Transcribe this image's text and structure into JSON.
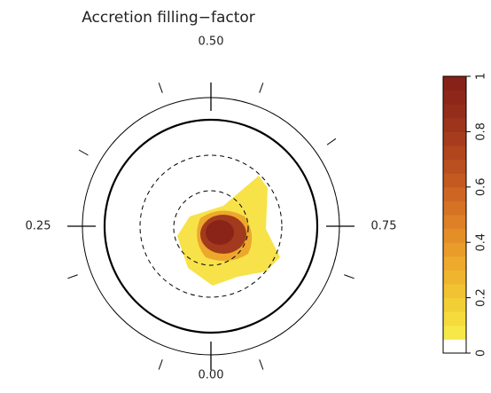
{
  "chart_data": {
    "type": "polar-map",
    "title": "Accretion filling−factor",
    "phase_ticks": [
      {
        "value": 0.5,
        "label": "0.50"
      },
      {
        "value": 0.25,
        "label": "0.25"
      },
      {
        "value": 0.75,
        "label": "0.75"
      },
      {
        "value": 0,
        "label": "0.00"
      }
    ],
    "colorbar": {
      "lim": [
        0,
        1
      ],
      "ticks": [
        0,
        0.2,
        0.4,
        0.6,
        0.8,
        1
      ],
      "colors": [
        "#ffffff",
        "#f7e84a",
        "#f5dc3c",
        "#f3cf36",
        "#f1c232",
        "#efb52e",
        "#edaa2c",
        "#e99c2a",
        "#e48e28",
        "#de8026",
        "#d67224",
        "#cd6622",
        "#c45a20",
        "#ba4f1f",
        "#b0451e",
        "#a63c1d",
        "#9d341c",
        "#952d1b",
        "#8e271a",
        "#872219"
      ]
    }
  }
}
